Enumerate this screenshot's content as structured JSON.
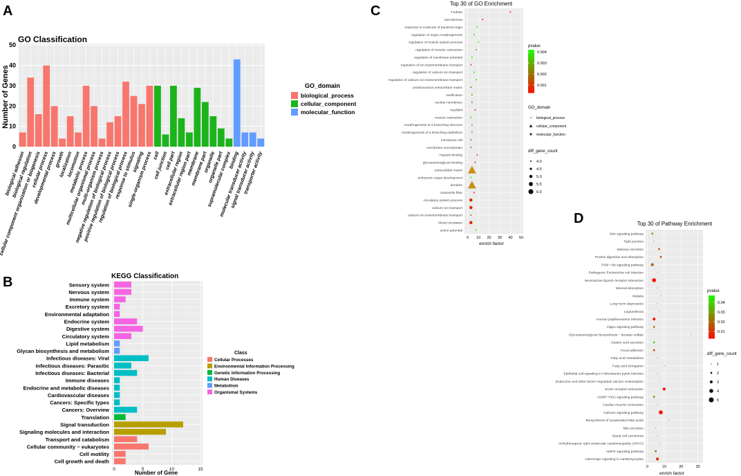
{
  "panels": {
    "A": "A",
    "B": "B",
    "C": "C",
    "D": "D"
  },
  "chart_data": [
    {
      "type": "bar",
      "title": "GO Classification",
      "xlabel": "",
      "ylabel": "Number of Genes",
      "ylim": [
        0,
        50
      ],
      "yticks": [
        "0",
        "10",
        "20",
        "30",
        "40",
        "50"
      ],
      "legend_title": "GO_domain",
      "legend": [
        {
          "name": "biological_process",
          "color": "#f8766d"
        },
        {
          "name": "cellular_component",
          "color": "#1cb41c"
        },
        {
          "name": "molecular_function",
          "color": "#619cff"
        }
      ],
      "categories": [
        "biological adhesion",
        "biological regulation",
        "cellular component organization or biogenesis",
        "cellular process",
        "developmental process",
        "growth",
        "localization",
        "locomotion",
        "metabolic process",
        "multicellular organismal process",
        "multi-organism process",
        "negative regulation of biological process",
        "positive regulation of biological process",
        "regulation of biological process",
        "response to stimulus",
        "signaling",
        "single-organism process",
        "cell",
        "cell junction",
        "cell part",
        "extracellular region",
        "extracellular region part",
        "membrane",
        "membrane part",
        "organelle",
        "organelle part",
        "supramolecular complex",
        "binding",
        "molecular transducer activity",
        "signal transducer activity",
        "transporter activity"
      ],
      "values": [
        7,
        34,
        16,
        40,
        20,
        4,
        15,
        7,
        30,
        20,
        4,
        12,
        15,
        32,
        25,
        21,
        30,
        30,
        6,
        30,
        14,
        7,
        29,
        22,
        15,
        9,
        4,
        43,
        7,
        7,
        4
      ],
      "domains": [
        0,
        0,
        0,
        0,
        0,
        0,
        0,
        0,
        0,
        0,
        0,
        0,
        0,
        0,
        0,
        0,
        0,
        1,
        1,
        1,
        1,
        1,
        1,
        1,
        1,
        1,
        1,
        2,
        2,
        2,
        2
      ]
    },
    {
      "type": "bar",
      "orientation": "horizontal",
      "title": "KEGG Classification",
      "xlabel": "Number of Gene",
      "ylabel": "",
      "xlim": [
        0,
        15
      ],
      "xticks": [
        "0",
        "5",
        "10",
        "15"
      ],
      "legend_title": "Class",
      "legend": [
        {
          "name": "Cellular Processes",
          "color": "#f8766d"
        },
        {
          "name": "Environmental Information Processing",
          "color": "#b79f00"
        },
        {
          "name": "Genetic Information Processing",
          "color": "#00ba38"
        },
        {
          "name": "Human Diseases",
          "color": "#00bfc4"
        },
        {
          "name": "Metabolism",
          "color": "#619cff"
        },
        {
          "name": "Organismal Systems",
          "color": "#f564e3"
        }
      ],
      "categories": [
        "Sensory system",
        "Nervous system",
        "Immune system",
        "Excretory system",
        "Environmental adaptation",
        "Endocrine system",
        "Digestive system",
        "Circulatory system",
        "Lipid metabolism",
        "Glycan biosynthesis and metabolism",
        "Infectious diseases: Viral",
        "Infectious diseases: Parasitic",
        "Infectious diseases: Bacterial",
        "Immune diseases",
        "Endocrine and metabolic diseases",
        "Cardiovascular diseases",
        "Cancers: Specific types",
        "Cancers: Overview",
        "Translation",
        "Signal transduction",
        "Signaling molecules and interaction",
        "Transport and catabolism",
        "Cellular community − eukaryotes",
        "Cell motility",
        "Cell growth and death"
      ],
      "values": [
        3,
        3,
        2,
        1,
        1,
        4,
        5,
        3,
        1,
        1,
        6,
        3,
        4,
        1,
        1,
        1,
        1,
        4,
        2,
        12,
        9,
        4,
        6,
        2,
        2
      ],
      "classes": [
        5,
        5,
        5,
        5,
        5,
        5,
        5,
        5,
        4,
        4,
        3,
        3,
        3,
        3,
        3,
        3,
        3,
        3,
        2,
        1,
        1,
        0,
        0,
        0,
        0
      ]
    },
    {
      "type": "scatter",
      "title": "Top 30 of GO Enrichment",
      "xlabel": "enrich factor",
      "ylabel": "",
      "xlim": [
        -3,
        52
      ],
      "xticks": [
        "0",
        "10",
        "20",
        "30",
        "40",
        "50"
      ],
      "pvalue_legend_title": "pvalue",
      "pvalue_ticks": [
        "0.004",
        "0.003",
        "0.002",
        "0.001"
      ],
      "shape_legend_title": "GO_domain",
      "shape_legend": [
        "biological_process",
        "cellular_component",
        "molecular_function"
      ],
      "size_legend_title": "diff_gene_count",
      "size_legend": [
        "4.0",
        "4.5",
        "5.0",
        "5.5",
        "6.0"
      ],
      "terms": [
        "T-tubule",
        "sarcolemma",
        "response to molecule of bacterial origin",
        "regulation of organ morphogenesis",
        "regulation of muscle system process",
        "regulation of muscle contraction",
        "regulation of membrane potential",
        "regulation of ion transmembrane transport",
        "regulation of calcium ion transport",
        "regulation of calcium ion transmembrane transport",
        "proteinaceous extracellular matrix",
        "ossification",
        "nuclear membrane",
        "myofibril",
        "muscle contraction",
        "morphogenesis of a branching structure",
        "morphogenesis of a branching epithelium",
        "membrane raft",
        "membrane microdomain",
        "heparin binding",
        "glycosaminoglycan binding",
        "extracellular matrix",
        "embryonic organ development",
        "dendrite",
        "contractile fiber",
        "circulatory system process",
        "calcium ion transport",
        "calcium ion transmembrane transport",
        "blood circulation",
        "action potential"
      ],
      "x": [
        40,
        14,
        9,
        6,
        10,
        8,
        4,
        3,
        6,
        8,
        3,
        4,
        4,
        7,
        3,
        4,
        4,
        3,
        3,
        9,
        7,
        4,
        3,
        4,
        6,
        3,
        3,
        3,
        3,
        8
      ],
      "pvalue": [
        0.0005,
        0.0008,
        0.004,
        0.004,
        0.004,
        0.003,
        0.004,
        0.001,
        0.004,
        0.004,
        0.002,
        0.003,
        0.002,
        0.0008,
        0.004,
        0.003,
        0.003,
        0.002,
        0.002,
        0.0008,
        0.001,
        0.001,
        0.004,
        0.001,
        0.0008,
        0.0008,
        0.0008,
        0.002,
        0.0008,
        0.004
      ],
      "count": [
        4,
        4,
        4,
        4,
        4,
        4,
        4,
        4,
        4,
        4,
        4,
        4,
        4,
        4,
        4,
        4,
        4,
        4,
        4,
        4,
        4,
        6,
        4,
        6,
        4,
        5,
        5,
        4,
        5,
        4
      ],
      "domain": [
        1,
        1,
        0,
        0,
        0,
        0,
        0,
        0,
        0,
        0,
        1,
        0,
        1,
        1,
        0,
        0,
        0,
        1,
        1,
        2,
        2,
        1,
        0,
        1,
        1,
        0,
        0,
        0,
        0,
        0
      ]
    },
    {
      "type": "scatter",
      "title": "Top 30 of Pathway Enrichment",
      "xlabel": "enrich factor",
      "ylabel": "",
      "xlim": [
        -1,
        33
      ],
      "xticks": [
        "0",
        "10",
        "20",
        "30"
      ],
      "pvalue_legend_title": "pvalue",
      "pvalue_ticks": [
        "0.04",
        "0.03",
        "0.02",
        "0.01"
      ],
      "size_legend_title": "diff_gene_count",
      "size_legend": [
        "1",
        "2",
        "3",
        "4",
        "5"
      ],
      "terms": [
        "Wnt signaling pathway",
        "Tight junction",
        "Salivary secretion",
        "Protein digestion and absorption",
        "PI3K−Akt signaling pathway",
        "Pathogenic Escherichia coli infection",
        "Neuroactive ligand−receptor interaction",
        "Mineral absorption",
        "Malaria",
        "Long−term depression",
        "Legionellosis",
        "Human papillomavirus infection",
        "Hippo signaling pathway",
        "Glycosaminoglycan biosynthesis − keratan sulfate",
        "Gastric acid secretion",
        "Focal adhesion",
        "Fatty acid metabolism",
        "Fatty acid elongation",
        "Epithelial cell signaling in Helicobacter pylori infection",
        "Endocrine and other factor−regulated calcium reabsorption",
        "ECM−receptor interaction",
        "cGMP−PKG signaling pathway",
        "Cardiac muscle contraction",
        "Calcium signaling pathway",
        "Biosynthesis of unsaturated fatty acids",
        "Bile secretion",
        "Basal cell carcinoma",
        "Arrhythmogenic right ventricular cardiomyopathy (ARVC)",
        "AMPK signaling pathway",
        "Adrenergic signaling in cardiomyocytes"
      ],
      "x": [
        3,
        4,
        7,
        8,
        3,
        6,
        4,
        6,
        8,
        6,
        7,
        4,
        4,
        26,
        4,
        4,
        6,
        10,
        6,
        7,
        10,
        4,
        6,
        8,
        13,
        5,
        6,
        7,
        5,
        6
      ],
      "pvalue": [
        0.03,
        0.025,
        0.015,
        0.015,
        0.02,
        0.045,
        0.004,
        0.04,
        0.04,
        0.04,
        0.04,
        0.006,
        0.02,
        0.035,
        0.04,
        0.012,
        0.04,
        0.03,
        0.04,
        0.04,
        0.005,
        0.025,
        0.04,
        0.004,
        0.035,
        0.04,
        0.04,
        0.04,
        0.02,
        0.01
      ],
      "count": [
        2,
        1,
        2,
        2,
        3,
        1,
        4,
        1,
        1,
        1,
        1,
        3,
        2,
        1,
        2,
        2,
        1,
        1,
        1,
        1,
        3,
        2,
        1,
        4,
        1,
        1,
        1,
        1,
        2,
        3
      ]
    }
  ]
}
